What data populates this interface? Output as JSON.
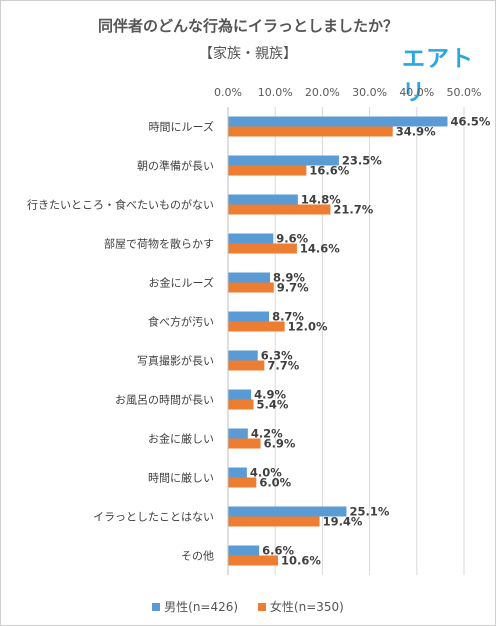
{
  "chart_data": {
    "type": "bar",
    "orientation": "horizontal",
    "title": "同伴者のどんな行為にイラっとしましたか？",
    "subtitle": "【家族・親族】",
    "brand": "エアトリ",
    "categories": [
      "時間にルーズ",
      "朝の準備が長い",
      "行きたいところ・食べたいものがない",
      "部屋で荷物を散らかす",
      "お金にルーズ",
      "食べ方が汚い",
      "写真撮影が長い",
      "お風呂の時間が長い",
      "お金に厳しい",
      "時間に厳しい",
      "イラっとしたことはない",
      "その他"
    ],
    "series": [
      {
        "name": "男性(n=426)",
        "color": "#5b9bd5",
        "values": [
          46.5,
          23.5,
          14.8,
          9.6,
          8.9,
          8.7,
          6.3,
          4.9,
          4.2,
          4.0,
          25.1,
          6.6
        ],
        "labels": [
          "46.5%",
          "23.5%",
          "14.8%",
          "9.6%",
          "8.9%",
          "8.7%",
          "6.3%",
          "4.9%",
          "4.2%",
          "4.0%",
          "25.1%",
          "6.6%"
        ]
      },
      {
        "name": "女性(n=350)",
        "color": "#ed7d31",
        "values": [
          34.9,
          16.6,
          21.7,
          14.6,
          9.7,
          12.0,
          7.7,
          5.4,
          6.9,
          6.0,
          19.4,
          10.6
        ],
        "labels": [
          "34.9%",
          "16.6%",
          "21.7%",
          "14.6%",
          "9.7%",
          "12.0%",
          "7.7%",
          "5.4%",
          "6.9%",
          "6.0%",
          "19.4%",
          "10.6%"
        ]
      }
    ],
    "xlim": [
      0,
      50
    ],
    "ticks": [
      0,
      10,
      20,
      30,
      40,
      50
    ],
    "tick_labels": [
      "0.0%",
      "10.0%",
      "20.0%",
      "30.0%",
      "40.0%",
      "50.0%"
    ],
    "xlabel": "",
    "ylabel": "",
    "grid": true,
    "legend_position": "bottom"
  }
}
